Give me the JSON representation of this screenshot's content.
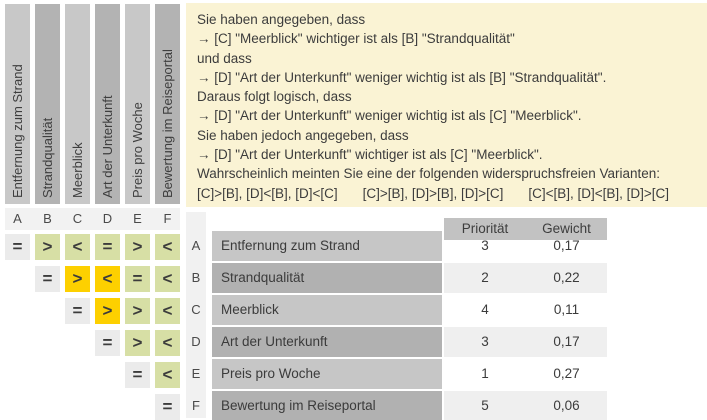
{
  "matrix": {
    "columns": [
      {
        "id": "A",
        "label": "Entfernung zum Strand"
      },
      {
        "id": "B",
        "label": "Strandqualität"
      },
      {
        "id": "C",
        "label": "Meerblick"
      },
      {
        "id": "D",
        "label": "Art der Unterkunft"
      },
      {
        "id": "E",
        "label": "Preis pro Woche"
      },
      {
        "id": "F",
        "label": "Bewertung im Reiseportal"
      }
    ],
    "column_letters": [
      "A",
      "B",
      "C",
      "D",
      "E",
      "F"
    ],
    "row_letters": [
      "A",
      "B",
      "C",
      "D",
      "E",
      "F"
    ],
    "rows": [
      {
        "row": "A",
        "cells": [
          {
            "col": "A",
            "symbol": "=",
            "state": "diagonal"
          },
          {
            "col": "B",
            "symbol": ">",
            "state": "normal"
          },
          {
            "col": "C",
            "symbol": "<",
            "state": "normal"
          },
          {
            "col": "D",
            "symbol": "=",
            "state": "normal"
          },
          {
            "col": "E",
            "symbol": ">",
            "state": "normal"
          },
          {
            "col": "F",
            "symbol": "<",
            "state": "normal"
          }
        ]
      },
      {
        "row": "B",
        "cells": [
          {
            "col": "B",
            "symbol": "=",
            "state": "diagonal"
          },
          {
            "col": "C",
            "symbol": ">",
            "state": "conflict"
          },
          {
            "col": "D",
            "symbol": "<",
            "state": "conflict"
          },
          {
            "col": "E",
            "symbol": "=",
            "state": "normal"
          },
          {
            "col": "F",
            "symbol": "<",
            "state": "normal"
          }
        ]
      },
      {
        "row": "C",
        "cells": [
          {
            "col": "C",
            "symbol": "=",
            "state": "diagonal"
          },
          {
            "col": "D",
            "symbol": ">",
            "state": "conflict"
          },
          {
            "col": "E",
            "symbol": ">",
            "state": "normal"
          },
          {
            "col": "F",
            "symbol": "<",
            "state": "normal"
          }
        ]
      },
      {
        "row": "D",
        "cells": [
          {
            "col": "D",
            "symbol": "=",
            "state": "diagonal"
          },
          {
            "col": "E",
            "symbol": ">",
            "state": "normal"
          },
          {
            "col": "F",
            "symbol": "<",
            "state": "normal"
          }
        ]
      },
      {
        "row": "E",
        "cells": [
          {
            "col": "E",
            "symbol": "=",
            "state": "diagonal"
          },
          {
            "col": "F",
            "symbol": "<",
            "state": "normal"
          }
        ]
      },
      {
        "row": "F",
        "cells": [
          {
            "col": "F",
            "symbol": "=",
            "state": "diagonal"
          }
        ]
      }
    ]
  },
  "message_box": {
    "lines": [
      "Sie haben angegeben, dass",
      "→ [C] \"Meerblick\" wichtiger ist als [B] \"Strandqualität\"",
      "und dass",
      "→ [D] \"Art der Unterkunft\" weniger wichtig ist als [B] \"Strandqualität\".",
      "Daraus folgt logisch, dass",
      "→ [D] \"Art der Unterkunft\" weniger wichtig ist als [C] \"Meerblick\".",
      "Sie haben jedoch angegeben, dass",
      "→ [D] \"Art der Unterkunft\" wichtiger ist als [C] \"Meerblick\".",
      "Wahrscheinlich meinten Sie eine der folgenden widerspruchsfreien Varianten:"
    ],
    "variants": [
      "[C]>[B], [D]<[B], [D]<[C]",
      "[C]>[B], [D]>[B], [D]>[C]",
      "[C]<[B], [D]<[B], [D]>[C]"
    ]
  },
  "results_table": {
    "priority_header": "Priorität",
    "weight_header": "Gewicht",
    "rows": [
      {
        "letter": "A",
        "name": "Entfernung zum Strand",
        "priority": "3",
        "weight": "0,17"
      },
      {
        "letter": "B",
        "name": "Strandqualität",
        "priority": "2",
        "weight": "0,22"
      },
      {
        "letter": "C",
        "name": "Meerblick",
        "priority": "4",
        "weight": "0,11"
      },
      {
        "letter": "D",
        "name": "Art der Unterkunft",
        "priority": "3",
        "weight": "0,17"
      },
      {
        "letter": "E",
        "name": "Preis pro Woche",
        "priority": "1",
        "weight": "0,27"
      },
      {
        "letter": "F",
        "name": "Bewertung im Reiseportal",
        "priority": "5",
        "weight": "0,06"
      }
    ]
  },
  "colors": {
    "conflict_cell": "#fdd000",
    "comparison_cell": "#d7dfa5",
    "diagonal_cell": "#ebebeb",
    "message_box_bg": "#faf3d4"
  }
}
